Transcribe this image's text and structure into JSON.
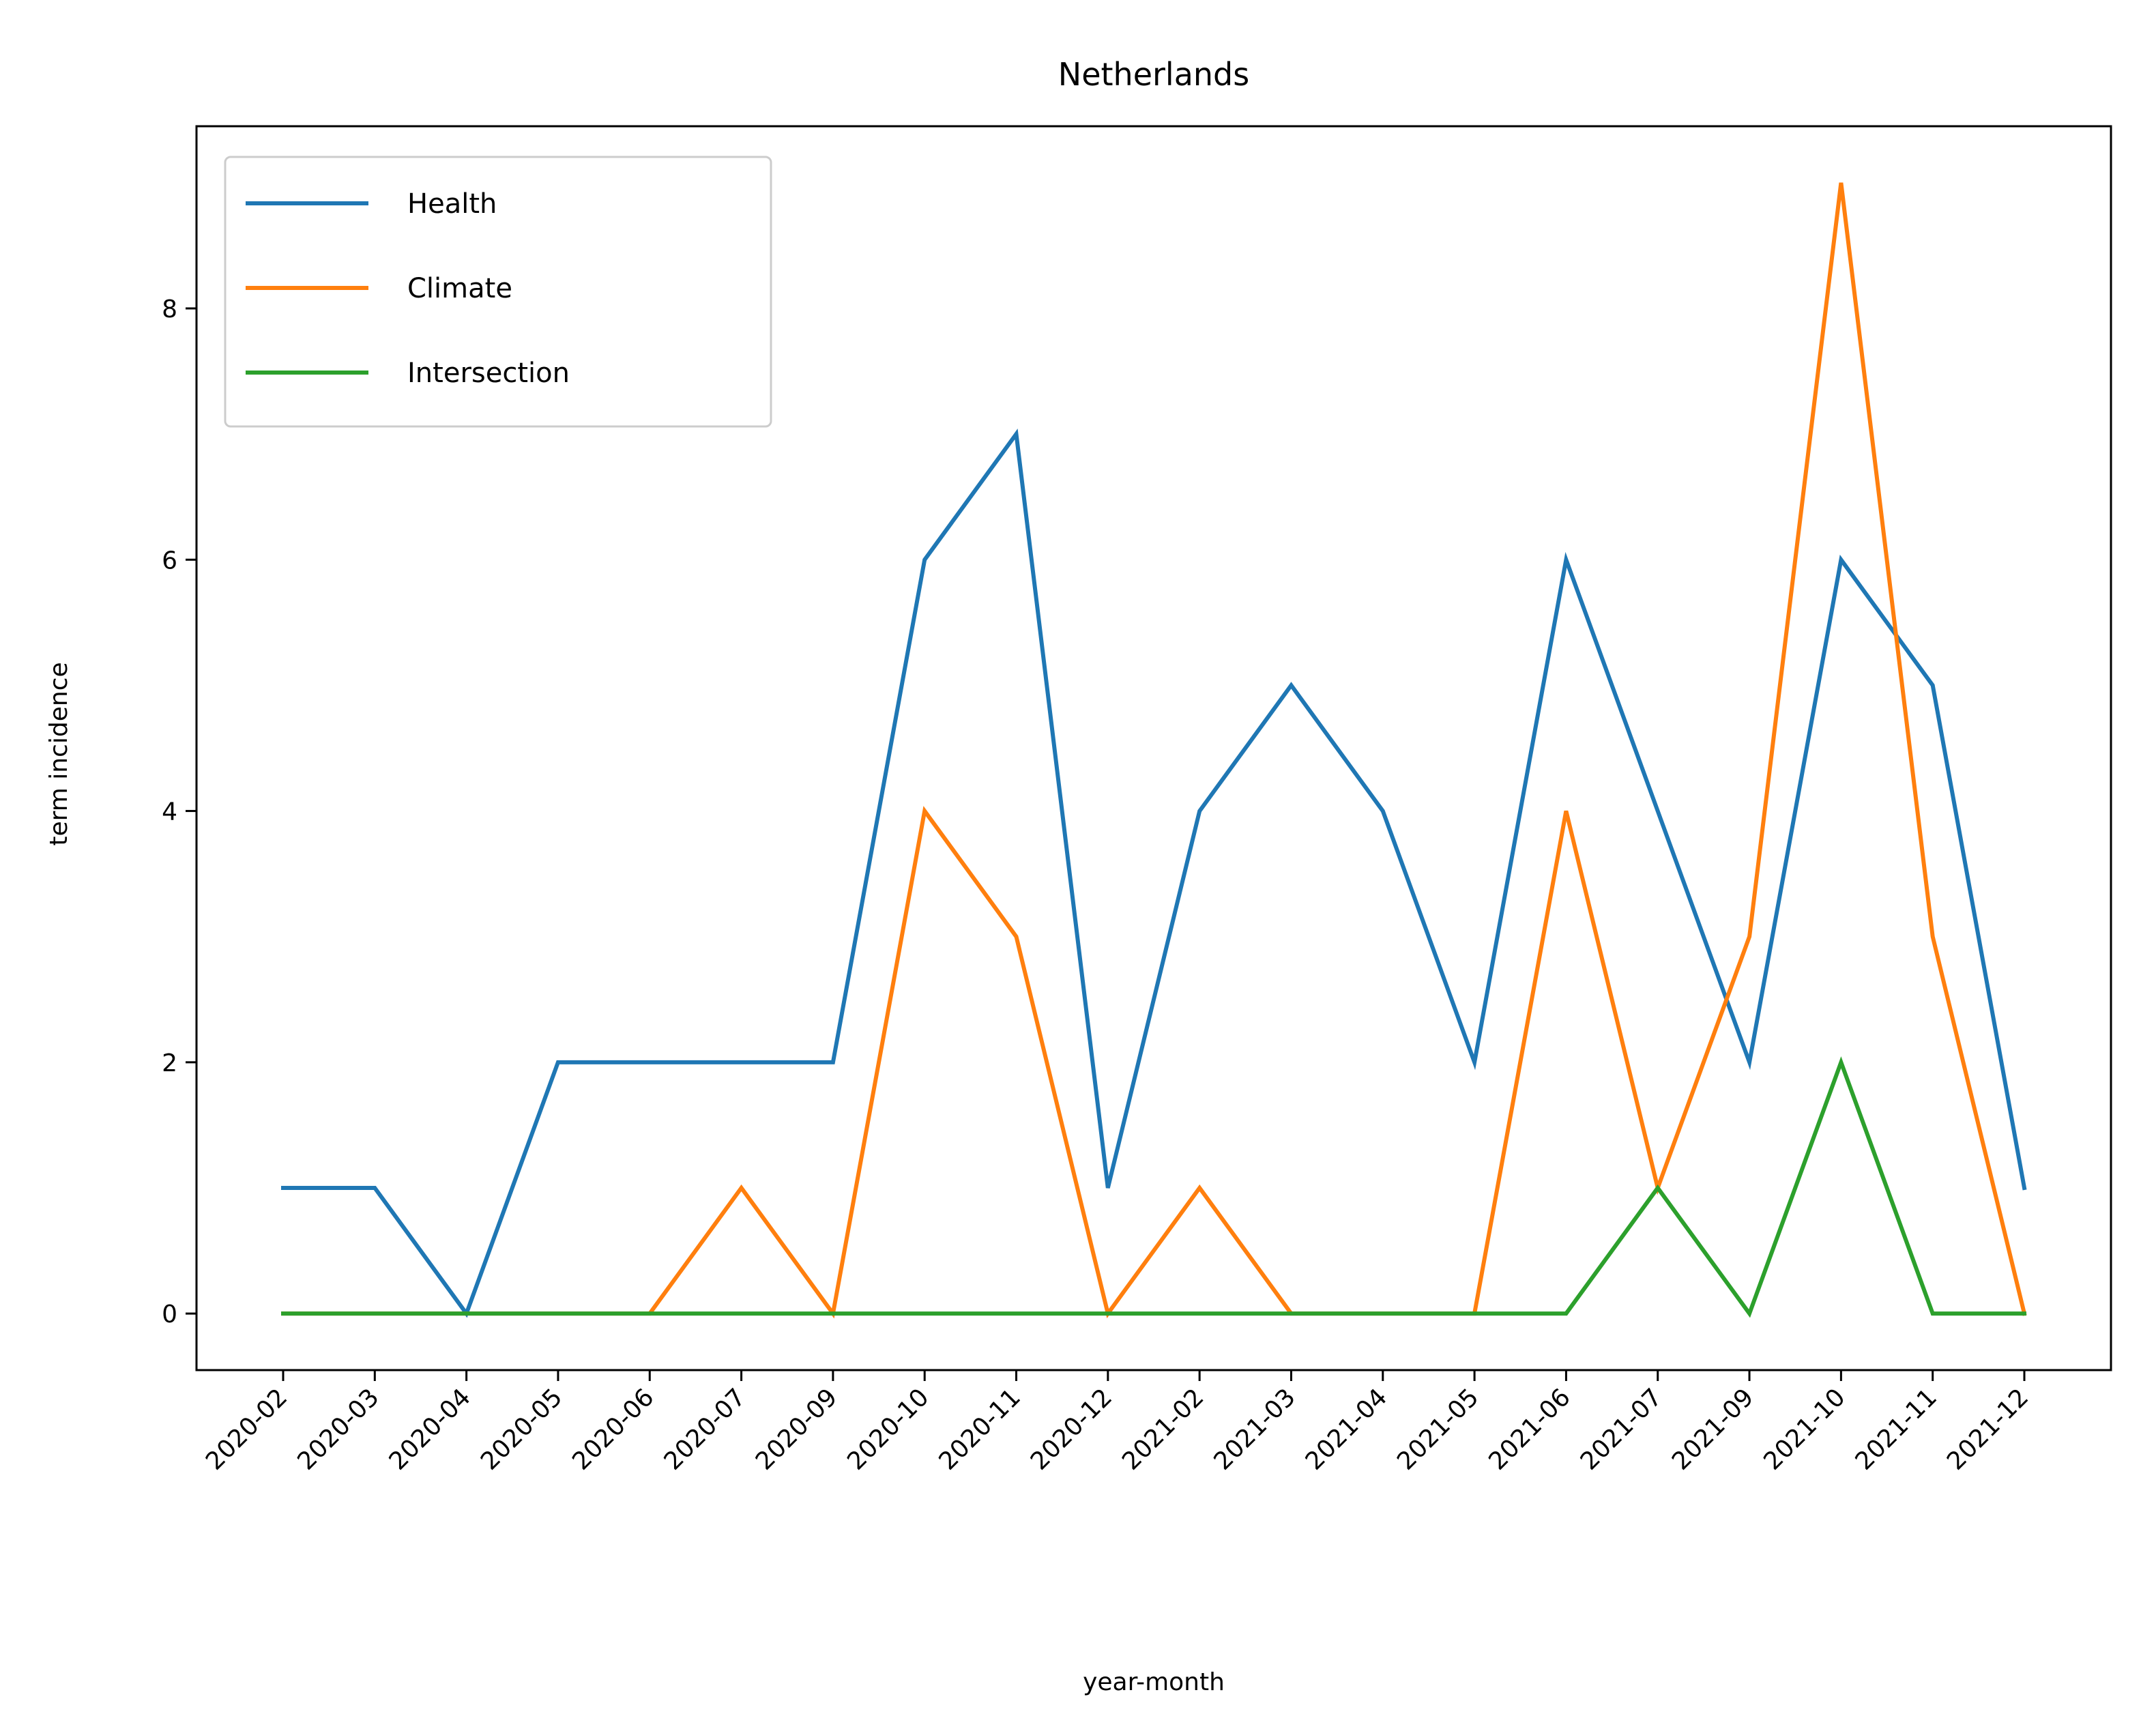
{
  "chart_data": {
    "type": "line",
    "title": "Netherlands",
    "xlabel": "year-month",
    "ylabel": "term incidence",
    "categories": [
      "2020-02",
      "2020-03",
      "2020-04",
      "2020-05",
      "2020-06",
      "2020-07",
      "2020-09",
      "2020-10",
      "2020-11",
      "2020-12",
      "2021-02",
      "2021-03",
      "2021-04",
      "2021-05",
      "2021-06",
      "2021-07",
      "2021-09",
      "2021-10",
      "2021-11",
      "2021-12"
    ],
    "yticks": [
      "0",
      "2",
      "4",
      "6",
      "8"
    ],
    "ylim": [
      -0.45,
      9.45
    ],
    "grid": false,
    "legend_position": "top-left",
    "series": [
      {
        "name": "Health",
        "color": "#1f77b4",
        "values": [
          1,
          1,
          0,
          2,
          2,
          2,
          2,
          6,
          7,
          1,
          4,
          5,
          4,
          2,
          6,
          4,
          2,
          6,
          5,
          1
        ]
      },
      {
        "name": "Climate",
        "color": "#ff7f0e",
        "values": [
          0,
          0,
          0,
          0,
          0,
          1,
          0,
          4,
          3,
          0,
          1,
          0,
          0,
          0,
          4,
          1,
          3,
          9,
          3,
          0
        ]
      },
      {
        "name": "Intersection",
        "color": "#2ca02c",
        "values": [
          0,
          0,
          0,
          0,
          0,
          0,
          0,
          0,
          0,
          0,
          0,
          0,
          0,
          0,
          0,
          1,
          0,
          2,
          0,
          0
        ]
      }
    ]
  }
}
